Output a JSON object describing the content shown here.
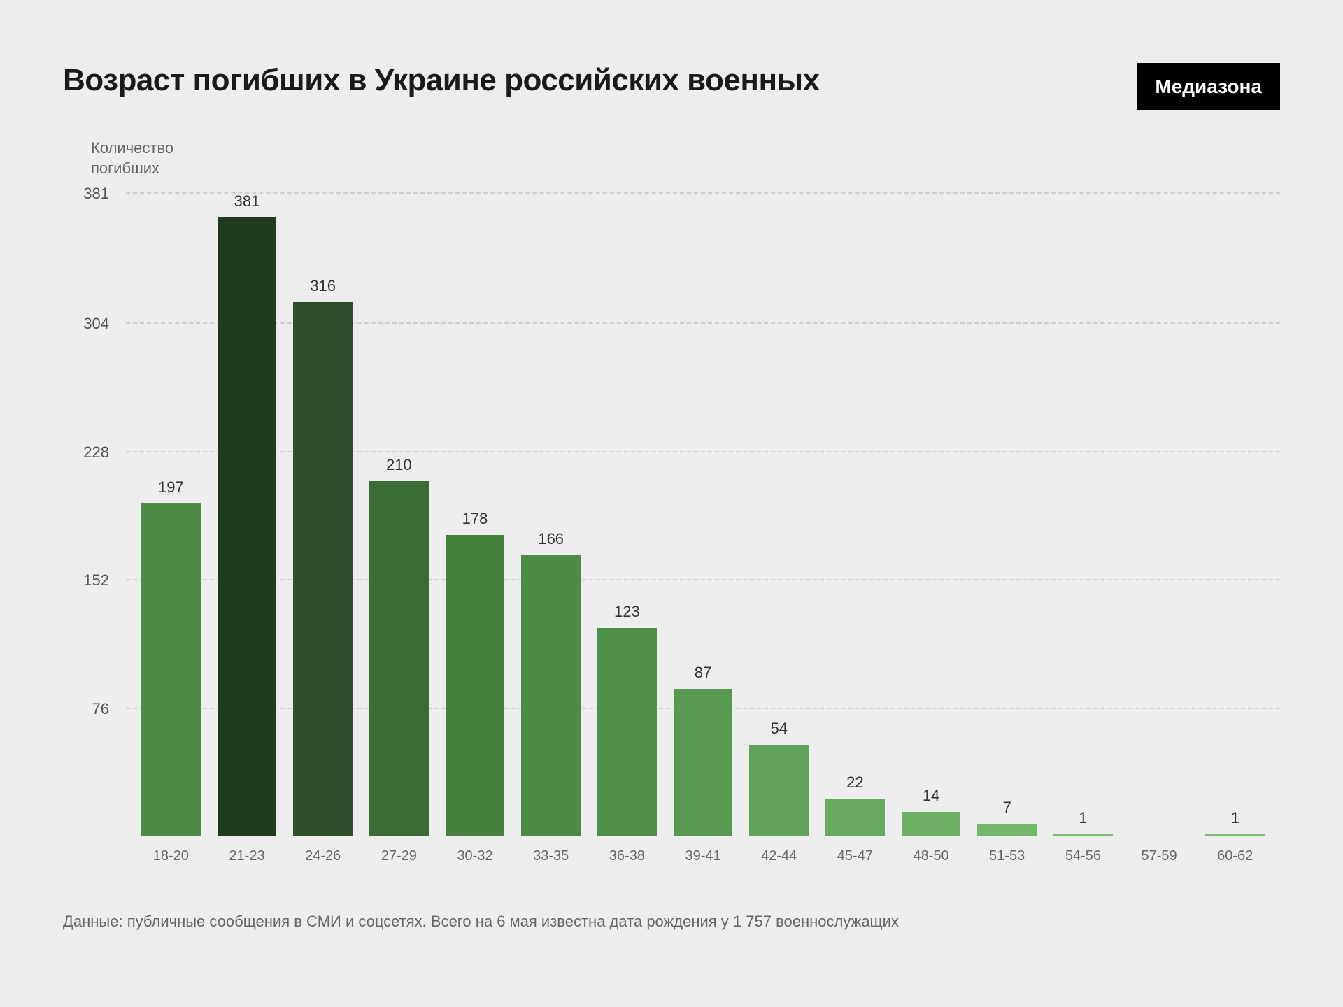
{
  "title": "Возраст погибших в Украине российских военных",
  "brand": "Медиазона",
  "yaxis_label_line1": "Количество",
  "yaxis_label_line2": "погибших",
  "chart": {
    "type": "bar",
    "max_value": 381,
    "yticks": [
      76,
      152,
      228,
      304,
      381
    ],
    "categories": [
      "18-20",
      "21-23",
      "24-26",
      "27-29",
      "30-32",
      "33-35",
      "36-38",
      "39-41",
      "42-44",
      "45-47",
      "48-50",
      "51-53",
      "54-56",
      "57-59",
      "60-62"
    ],
    "values": [
      197,
      381,
      316,
      210,
      178,
      166,
      123,
      87,
      54,
      22,
      14,
      7,
      1,
      0,
      1
    ],
    "value_labels": [
      "197",
      "381",
      "316",
      "210",
      "178",
      "166",
      "123",
      "87",
      "54",
      "22",
      "14",
      "7",
      "1",
      "",
      "1"
    ],
    "bar_colors": [
      "#4d8a45",
      "#1f3a1c",
      "#2d502a",
      "#3a6d34",
      "#45803e",
      "#4d8a45",
      "#4f8f47",
      "#589952",
      "#60a259",
      "#67aa5f",
      "#6db064",
      "#72b669",
      "#79bd6f",
      "#ededed",
      "#79bd6f"
    ],
    "background": "#ededed",
    "grid_color": "#cfcfcf",
    "tick_color": "#555",
    "label_color": "#666",
    "title_fontsize": 44,
    "axis_fontsize": 22,
    "value_fontsize": 22
  },
  "source": "Данные: публичные сообщения в СМИ и соцсетях. Всего на 6 мая известна дата рождения у 1 757 военнослужащих"
}
